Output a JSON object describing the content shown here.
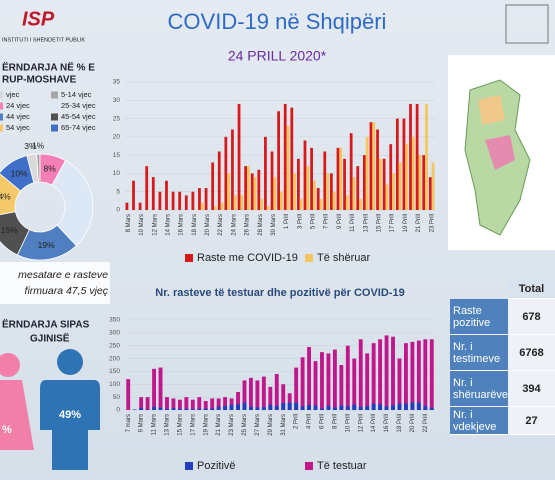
{
  "header": {
    "logo": "ISP",
    "institute": "INSTITUTI I SHËNDETIT PUBLIK",
    "title": "COVID-19 në Shqipëri",
    "subtitle": "24 PRILL 2020*"
  },
  "age_panel": {
    "title_line1": "ËRNDARJA NË % E",
    "title_line2": "RUP-MOSHAVE",
    "note_line1": "mesatare e rasteve",
    "note_line2": "firmuara 47,5 vjeç"
  },
  "gender_panel": {
    "title_line1": "ËRNDARJA SIPAS",
    "title_line2": "GJINISË",
    "female_label": "%",
    "male_label": "49%"
  },
  "table": {
    "header": "Total",
    "rows": [
      [
        "Raste pozitive",
        678
      ],
      [
        "Nr. i testimeve",
        6768
      ],
      [
        "Nr. i shëruarëve",
        394
      ],
      [
        "Nr. i vdekjeve",
        27
      ]
    ]
  },
  "chart_data": [
    {
      "type": "bar",
      "categories": [
        "8 Mars",
        null,
        "10 Mars",
        null,
        "12 Mars",
        null,
        "14 Mars",
        null,
        "16 Mars",
        null,
        "18 Mars",
        null,
        "20 Mars",
        null,
        "22 Mars",
        null,
        "24 Mars",
        null,
        "26 Mars",
        null,
        "28 Mars",
        null,
        "30 Mars",
        null,
        "1 Prill",
        null,
        "3 Prill",
        null,
        "5 Prill",
        null,
        "7 Prill",
        null,
        "9 Prill",
        null,
        "11 Prill",
        null,
        "13 Prill",
        null,
        "15 Prill",
        null,
        "17 Prill",
        null,
        "19 Prill",
        null,
        "21 Prill",
        null,
        "23 Prill"
      ],
      "series": [
        {
          "name": "Raste me COVID-19",
          "color": "#d7191c",
          "values": [
            2,
            8,
            2,
            12,
            9,
            5,
            8,
            5,
            5,
            4,
            5,
            6,
            6,
            13,
            16,
            20,
            22,
            29,
            12,
            10,
            11,
            20,
            16,
            27,
            29,
            28,
            14,
            19,
            17,
            6,
            16,
            10,
            17,
            14,
            21,
            12,
            15,
            24,
            22,
            14,
            18,
            25,
            25,
            29,
            29,
            15,
            9
          ]
        },
        {
          "name": "Të shëruar",
          "color": "#f3c65f",
          "values": [
            0,
            0,
            0,
            0,
            0,
            0,
            0,
            0,
            0,
            0,
            0,
            2,
            0,
            1,
            2,
            10,
            4,
            4,
            12,
            9,
            3,
            1,
            9,
            5,
            23,
            10,
            3,
            12,
            8,
            3,
            10,
            5,
            17,
            4,
            9,
            3,
            20,
            24,
            14,
            7,
            10,
            13,
            18,
            20,
            15,
            29,
            13
          ]
        }
      ],
      "ylim": [
        0,
        35
      ],
      "yticks": [
        0,
        5,
        10,
        15,
        20,
        25,
        30,
        35
      ],
      "grid": true
    },
    {
      "type": "bar",
      "title": "Nr. rasteve të testuar dhe pozitivë për COVID-19",
      "categories": [
        "7 mars",
        null,
        "9 Mars",
        null,
        "11 Mars",
        null,
        "13 Mars",
        null,
        "15 Mars",
        null,
        "17 Mars",
        null,
        "19 Mars",
        null,
        "21 Mars",
        null,
        "23 Mars",
        null,
        "25 Mars",
        null,
        "27 Mars",
        null,
        "29 Mars",
        null,
        "31 Mars",
        null,
        "2 Prill",
        null,
        "4 Prill",
        null,
        "6 Prill",
        null,
        "8 Prill",
        null,
        "10 Prill",
        null,
        "12 Prill",
        null,
        "14 Prill",
        null,
        "16 Prill",
        null,
        "18 Prill",
        null,
        "20 Prill",
        null,
        "22 Prill",
        null
      ],
      "series": [
        {
          "name": "Pozitivë",
          "color": "#1f3fbf",
          "values": [
            0,
            2,
            8,
            2,
            12,
            9,
            5,
            8,
            5,
            5,
            4,
            5,
            6,
            6,
            13,
            16,
            20,
            22,
            29,
            12,
            10,
            11,
            20,
            16,
            27,
            29,
            28,
            14,
            19,
            17,
            6,
            16,
            10,
            17,
            14,
            21,
            12,
            15,
            24,
            22,
            14,
            18,
            25,
            25,
            29,
            29,
            15,
            9
          ]
        },
        {
          "name": "Të testuar",
          "color": "#c0178a",
          "values": [
            120,
            0,
            50,
            50,
            160,
            165,
            50,
            45,
            40,
            50,
            40,
            50,
            35,
            45,
            45,
            50,
            45,
            70,
            115,
            125,
            115,
            130,
            90,
            140,
            100,
            65,
            165,
            205,
            245,
            190,
            225,
            220,
            235,
            175,
            250,
            200,
            275,
            220,
            260,
            275,
            290,
            285,
            200,
            260,
            265,
            270,
            275,
            275
          ]
        }
      ],
      "ylim": [
        0,
        350
      ],
      "yticks": [
        0,
        50,
        100,
        150,
        200,
        250,
        300,
        350
      ],
      "grid": true
    },
    {
      "type": "pie",
      "categories": [
        "vjec",
        "5-14 vjec",
        "24 vjec",
        "25-34 vjec",
        "44 vjec",
        "45-54 vjec",
        "54 vjec",
        "65-74 vjec"
      ],
      "values": [
        3,
        1,
        8,
        30,
        19,
        15,
        14,
        10
      ],
      "value_labels": [
        "3%",
        "1%",
        "8%",
        null,
        "19%",
        "15%",
        "14%",
        "10%"
      ],
      "colors": [
        "#d9d9d9",
        "#a5a5a5",
        "#f27fb5",
        "#dce8f6",
        "#4f7fc0",
        "#505050",
        "#f5c96a",
        "#3f6fc8"
      ]
    }
  ]
}
